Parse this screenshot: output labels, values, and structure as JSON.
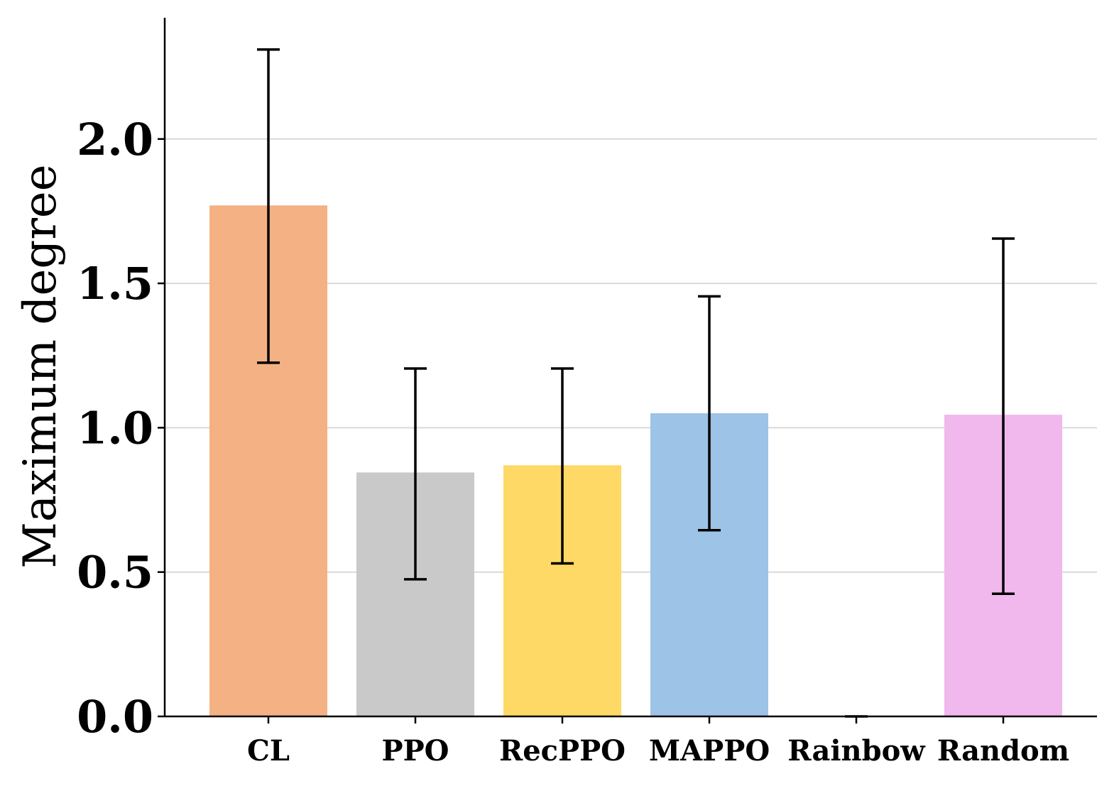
{
  "chart_data": {
    "type": "bar",
    "title": "",
    "xlabel": "",
    "ylabel": "Maximum degree",
    "categories": [
      "CL",
      "PPO",
      "RecPPO",
      "MAPPO",
      "Rainbow",
      "Random"
    ],
    "values": [
      1.77,
      0.845,
      0.87,
      1.05,
      0.0,
      1.045
    ],
    "error_low": [
      1.225,
      0.475,
      0.53,
      0.645,
      0.0,
      0.425
    ],
    "error_high": [
      2.31,
      1.205,
      1.205,
      1.455,
      0.0,
      1.655
    ],
    "colors": [
      "#f4b183",
      "#c9c9c9",
      "#ffd966",
      "#9dc3e6",
      "#cccccc",
      "#f0b8ec"
    ],
    "ylim": [
      0,
      2.42
    ],
    "yticks": [
      0.0,
      0.5,
      1.0,
      1.5,
      2.0
    ],
    "ytick_labels": [
      "0.0",
      "0.5",
      "1.0",
      "1.5",
      "2.0"
    ],
    "grid": "horizontal",
    "legend": "none"
  }
}
